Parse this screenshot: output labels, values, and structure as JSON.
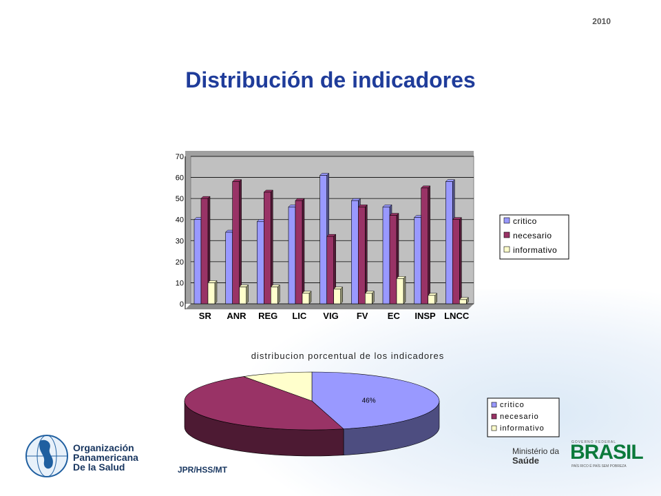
{
  "header": {
    "year": "2010",
    "title": "Distribución de indicadores"
  },
  "footer": {
    "org_line1": "Organización",
    "org_line2": "Panamericana",
    "org_line3": "De la Salud",
    "code": "JPR/HSS/MT",
    "ministerio_line1": "Ministério da",
    "ministerio_line2": "Saúde",
    "brasil": "BRASIL",
    "brasil_top": "GOVERNO FEDERAL",
    "brasil_sub": "PAÍS RICO É PAÍS SEM POBREZA"
  },
  "colors": {
    "critico": "#9999ff",
    "necesario": "#993366",
    "informativo": "#ffffcc",
    "plot_bg": "#c0c0c0",
    "title": "#1f3c9a"
  },
  "chart_data": [
    {
      "type": "bar",
      "categories": [
        "SR",
        "ANR",
        "REG",
        "LIC",
        "VIG",
        "FV",
        "EC",
        "INSP",
        "LNCC"
      ],
      "series": [
        {
          "name": "critico",
          "values": [
            40,
            34,
            39,
            46,
            61,
            49,
            46,
            41,
            58
          ]
        },
        {
          "name": "necesario",
          "values": [
            50,
            58,
            53,
            49,
            32,
            46,
            42,
            55,
            40
          ]
        },
        {
          "name": "informativo",
          "values": [
            10,
            8,
            8,
            5,
            7,
            5,
            12,
            4,
            2
          ]
        }
      ],
      "ylim": [
        0,
        70
      ],
      "yticks": [
        0,
        10,
        20,
        30,
        40,
        50,
        60,
        70
      ],
      "grid": true,
      "legend": "right"
    },
    {
      "type": "pie",
      "title": "distribucion porcentual de los indicadores",
      "labels": [
        "critico",
        "necesario",
        "informativo"
      ],
      "values": [
        46,
        45,
        9
      ],
      "data_labels": [
        "46%",
        "",
        ""
      ],
      "legend": "right"
    }
  ]
}
